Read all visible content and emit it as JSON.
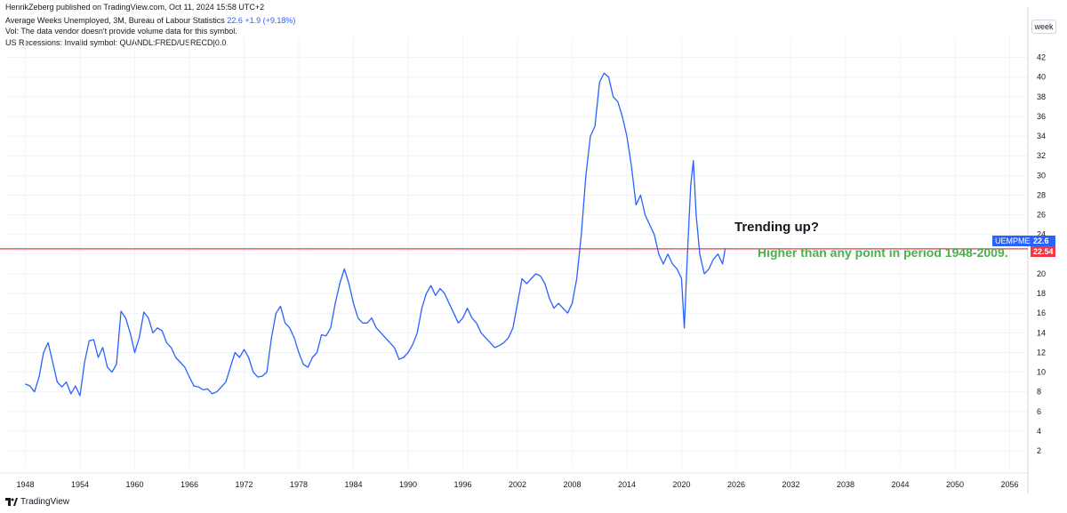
{
  "header": {
    "published": "HenrikZeberg published on TradingView.com, Oct 11, 2024 15:58 UTC+2",
    "series_title": "Average Weeks Unemployed, 3M, Bureau of Labour Statistics",
    "series_value": "22.6",
    "series_change": "+1.9 (+9.18%)",
    "volume_note": "Vol: The data vendor doesn't provide volume data for this symbol.",
    "recession_note": "US Recessions: Invalid symbol: QUANDL:FRED/USRECD|0.0"
  },
  "axis": {
    "unit": "week",
    "y_ticks": [
      "2",
      "4",
      "6",
      "8",
      "10",
      "12",
      "14",
      "16",
      "18",
      "20",
      "22",
      "24",
      "26",
      "28",
      "30",
      "32",
      "34",
      "36",
      "38",
      "40",
      "42"
    ],
    "x_ticks": [
      "1948",
      "1954",
      "1960",
      "1966",
      "1972",
      "1978",
      "1984",
      "1990",
      "1996",
      "2002",
      "2008",
      "2014",
      "2020",
      "2026",
      "2032",
      "2038",
      "2044",
      "2050",
      "2056"
    ]
  },
  "tags": {
    "symbol": "UEMPMEAN",
    "last_value": "22.6",
    "hline_value": "22.54"
  },
  "annotations": {
    "trend": "Trending up?",
    "higher": "Higher than any point in period 1948-2009."
  },
  "footer": {
    "brand": "TradingView"
  },
  "colors": {
    "series": "#2962ff",
    "hline": "#f23645",
    "annotation_green": "#4caf50",
    "text": "#131722"
  },
  "chart_data": {
    "type": "line",
    "ylabel": "",
    "xlabel": "",
    "ylim": [
      0.2,
      43.5
    ],
    "xlim": [
      1946,
      2058
    ],
    "hline": 22.54,
    "series": [
      {
        "x": [
          1948.0,
          1948.5,
          1949.0,
          1949.5,
          1950.0,
          1950.5,
          1951.0,
          1951.5,
          1952.0,
          1952.5,
          1953.0,
          1953.5,
          1954.0,
          1954.5,
          1955.0,
          1955.5,
          1956.0,
          1956.5,
          1957.0,
          1957.5,
          1958.0,
          1958.5,
          1959.0,
          1959.5,
          1960.0,
          1960.5,
          1961.0,
          1961.5,
          1962.0,
          1962.5,
          1963.0,
          1963.5,
          1964.0,
          1964.5,
          1965.0,
          1965.5,
          1966.0,
          1966.5,
          1967.0,
          1967.5,
          1968.0,
          1968.5,
          1969.0,
          1969.5,
          1970.0,
          1970.5,
          1971.0,
          1971.5,
          1972.0,
          1972.5,
          1973.0,
          1973.5,
          1974.0,
          1974.5,
          1975.0,
          1975.5,
          1976.0,
          1976.5,
          1977.0,
          1977.5,
          1978.0,
          1978.5,
          1979.0,
          1979.5,
          1980.0,
          1980.5,
          1981.0,
          1981.5,
          1982.0,
          1982.5,
          1983.0,
          1983.5,
          1984.0,
          1984.5,
          1985.0,
          1985.5,
          1986.0,
          1986.5,
          1987.0,
          1987.5,
          1988.0,
          1988.5,
          1989.0,
          1989.5,
          1990.0,
          1990.5,
          1991.0,
          1991.5,
          1992.0,
          1992.5,
          1993.0,
          1993.5,
          1994.0,
          1994.5,
          1995.0,
          1995.5,
          1996.0,
          1996.5,
          1997.0,
          1997.5,
          1998.0,
          1998.5,
          1999.0,
          1999.5,
          2000.0,
          2000.5,
          2001.0,
          2001.5,
          2002.0,
          2002.5,
          2003.0,
          2003.5,
          2004.0,
          2004.5,
          2005.0,
          2005.5,
          2006.0,
          2006.5,
          2007.0,
          2007.5,
          2008.0,
          2008.5,
          2009.0,
          2009.5,
          2010.0,
          2010.5,
          2011.0,
          2011.5,
          2012.0,
          2012.5,
          2013.0,
          2013.5,
          2014.0,
          2014.5,
          2015.0,
          2015.5,
          2016.0,
          2016.5,
          2017.0,
          2017.5,
          2018.0,
          2018.5,
          2019.0,
          2019.5,
          2020.0,
          2020.3,
          2020.6,
          2021.0,
          2021.3,
          2021.6,
          2022.0,
          2022.5,
          2023.0,
          2023.5,
          2024.0,
          2024.5,
          2024.8
        ],
        "y": [
          8.8,
          8.6,
          8.0,
          9.5,
          12.0,
          13.0,
          11.0,
          9.0,
          8.5,
          9.0,
          7.8,
          8.6,
          7.6,
          11.0,
          13.2,
          13.3,
          11.5,
          12.5,
          10.5,
          10.0,
          10.8,
          16.2,
          15.5,
          14.0,
          12.0,
          13.5,
          16.1,
          15.5,
          14.0,
          14.5,
          14.2,
          13.0,
          12.5,
          11.5,
          11.0,
          10.5,
          9.5,
          8.6,
          8.5,
          8.2,
          8.3,
          7.8,
          8.0,
          8.5,
          9.0,
          10.5,
          12.0,
          11.5,
          12.3,
          11.5,
          10.0,
          9.5,
          9.6,
          10.0,
          13.5,
          16.0,
          16.7,
          15.0,
          14.5,
          13.5,
          12.0,
          10.8,
          10.5,
          11.5,
          12.0,
          13.8,
          13.7,
          14.5,
          17.0,
          19.0,
          20.5,
          19.0,
          17.0,
          15.5,
          15.0,
          15.0,
          15.5,
          14.5,
          14.0,
          13.5,
          13.0,
          12.5,
          11.3,
          11.5,
          12.0,
          12.8,
          14.0,
          16.5,
          18.0,
          18.8,
          17.8,
          18.5,
          18.0,
          17.0,
          16.0,
          15.0,
          15.5,
          16.5,
          15.5,
          15.0,
          14.0,
          13.5,
          13.0,
          12.5,
          12.7,
          13.0,
          13.5,
          14.5,
          17.0,
          19.5,
          19.0,
          19.5,
          20.0,
          19.8,
          19.0,
          17.5,
          16.5,
          17.0,
          16.5,
          16.0,
          17.0,
          19.5,
          24.0,
          30.0,
          34.0,
          35.0,
          39.5,
          40.4,
          40.0,
          38.0,
          37.5,
          36.0,
          34.0,
          31.0,
          27.0,
          28.0,
          26.0,
          25.0,
          24.0,
          22.0,
          21.0,
          22.0,
          21.0,
          20.5,
          19.5,
          14.5,
          21.0,
          29.0,
          31.5,
          26.0,
          22.0,
          20.0,
          20.5,
          21.5,
          22.0,
          21.0,
          22.6
        ]
      }
    ]
  }
}
